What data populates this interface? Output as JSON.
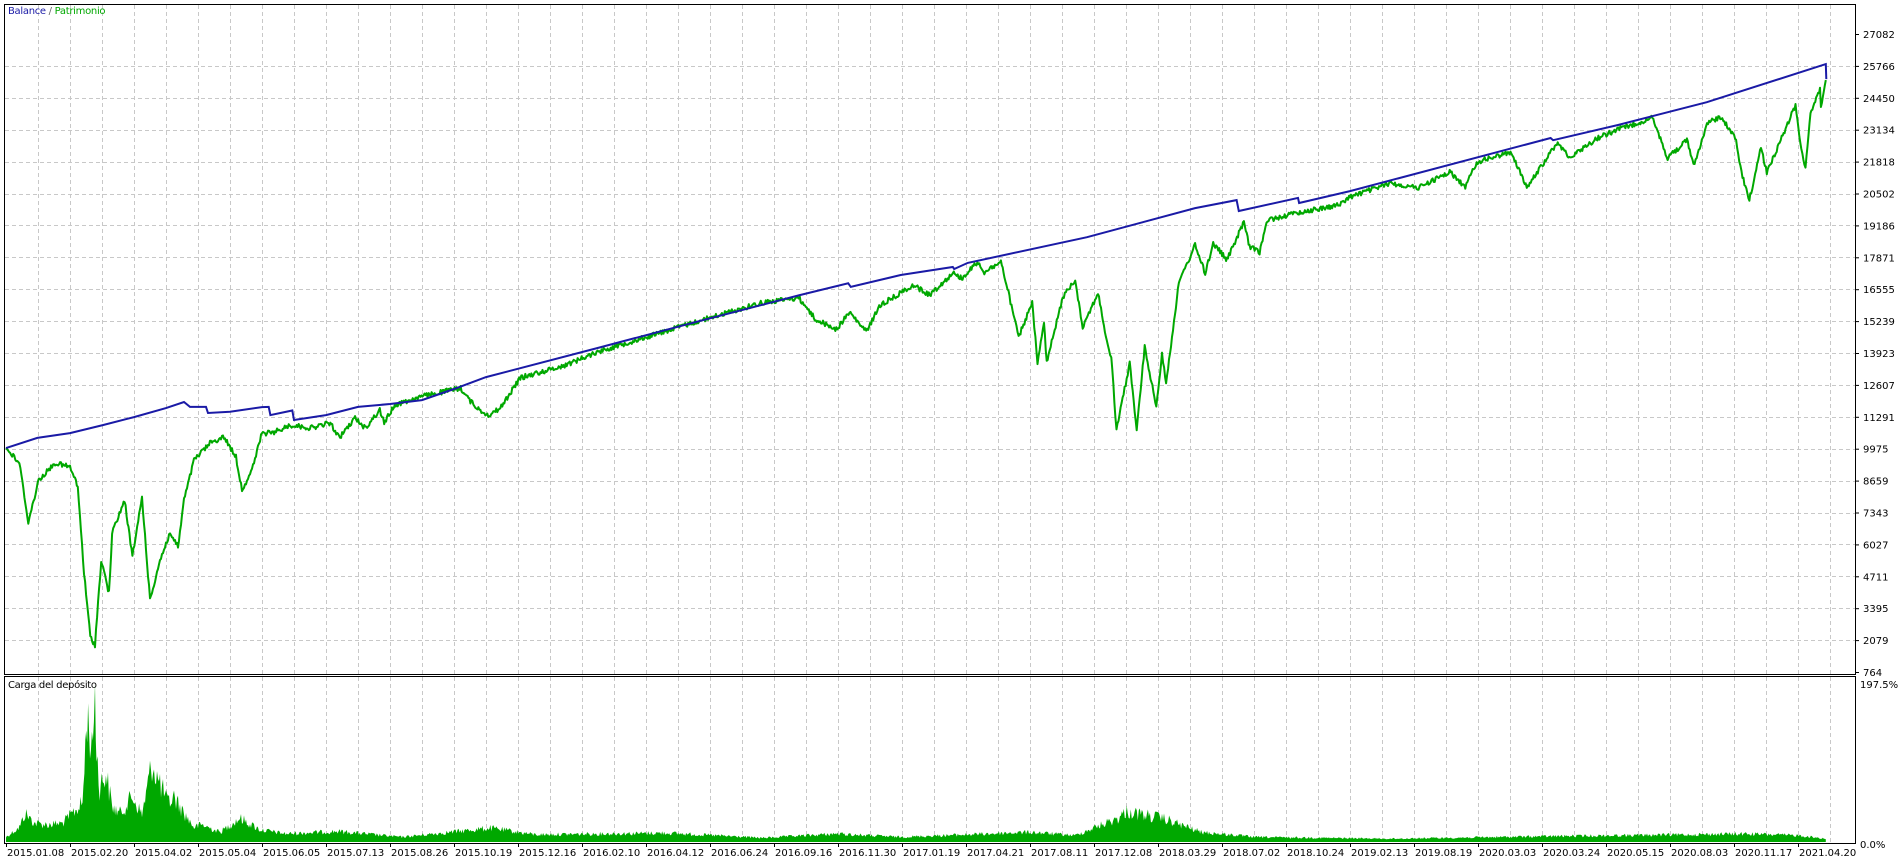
{
  "legend": {
    "balance": "Balance",
    "separator": " / ",
    "equity": "Patrimonio"
  },
  "lower_pane": {
    "label": "Carga del depósito"
  },
  "colors": {
    "balance": "#1a1aa6",
    "equity": "#00a800",
    "grid": "#c8c8c8",
    "frame": "#000000"
  },
  "chart_data": [
    {
      "type": "line",
      "grid": true,
      "ylim": [
        764,
        27082
      ],
      "y_ticks": [
        "27082",
        "25766",
        "24450",
        "23134",
        "21818",
        "20502",
        "19186",
        "17871",
        "16555",
        "15239",
        "13923",
        "12607",
        "11291",
        "9975",
        "8659",
        "7343",
        "6027",
        "4711",
        "3395",
        "2079",
        "764"
      ],
      "x_ticks": [
        "2015.01.08",
        "2015.02.20",
        "2015.04.02",
        "2015.05.04",
        "2015.06.05",
        "2015.07.13",
        "2015.08.26",
        "2015.10.19",
        "2015.12.16",
        "2016.02.10",
        "2016.04.12",
        "2016.06.24",
        "2016.09.16",
        "2016.11.30",
        "2017.01.19",
        "2017.04.21",
        "2017.08.11",
        "2017.12.08",
        "2018.03.29",
        "2018.07.02",
        "2018.10.24",
        "2019.02.13",
        "2019.08.19",
        "2020.03.03",
        "2020.03.24",
        "2020.05.15",
        "2020.08.03",
        "2020.11.17",
        "2021.04.20"
      ],
      "series": [
        {
          "name": "Balance",
          "color": "#1a1aa6",
          "points": [
            [
              "2015.01.08",
              10000
            ],
            [
              "2015.01.29",
              10420
            ],
            [
              "2015.02.20",
              10620
            ],
            [
              "2015.03.13",
              10950
            ],
            [
              "2015.04.02",
              11280
            ],
            [
              "2015.04.18",
              11650
            ],
            [
              "2015.04.27",
              11900
            ],
            [
              "2015.04.30",
              11700
            ],
            [
              "2015.05.08",
              11700
            ],
            [
              "2015.05.09",
              11450
            ],
            [
              "2015.05.20",
              11500
            ],
            [
              "2015.06.05",
              11690
            ],
            [
              "2015.06.09",
              11700
            ],
            [
              "2015.06.10",
              11360
            ],
            [
              "2015.06.23",
              11550
            ],
            [
              "2015.06.24",
              11160
            ],
            [
              "2015.07.13",
              11360
            ],
            [
              "2015.08.04",
              11700
            ],
            [
              "2015.08.26",
              11820
            ],
            [
              "2015.09.22",
              11980
            ],
            [
              "2015.10.19",
              12440
            ],
            [
              "2015.11.17",
              12930
            ],
            [
              "2016.02.27",
              14150
            ],
            [
              "2016.06.13",
              15250
            ],
            [
              "2016.10.15",
              16300
            ],
            [
              "2016.12.08",
              16800
            ],
            [
              "2016.12.10",
              16650
            ],
            [
              "2017.01.18",
              17140
            ],
            [
              "2017.04.02",
              17470
            ],
            [
              "2017.04.04",
              17390
            ],
            [
              "2017.04.24",
              17640
            ],
            [
              "2017.11.25",
              18700
            ],
            [
              "2018.05.23",
              19900
            ],
            [
              "2018.07.28",
              20230
            ],
            [
              "2018.08.01",
              19780
            ],
            [
              "2018.11.14",
              20320
            ],
            [
              "2018.11.16",
              20110
            ],
            [
              "2019.02.13",
              20600
            ],
            [
              "2020.03.31",
              22790
            ],
            [
              "2020.04.02",
              22700
            ],
            [
              "2020.05.30",
              23330
            ],
            [
              "2020.10.03",
              24270
            ],
            [
              "2021.06.26",
              25840
            ],
            [
              "2021.06.27",
              25220
            ]
          ]
        },
        {
          "name": "Patrimonio",
          "color": "#00a800",
          "points": [
            [
              "2015.01.08",
              10000
            ],
            [
              "2015.01.17",
              9380
            ],
            [
              "2015.01.23",
              6950
            ],
            [
              "2015.01.30",
              8680
            ],
            [
              "2015.02.10",
              9380
            ],
            [
              "2015.02.20",
              9220
            ],
            [
              "2015.02.25",
              8400
            ],
            [
              "2015.03.01",
              4850
            ],
            [
              "2015.03.05",
              2210
            ],
            [
              "2015.03.08",
              1880
            ],
            [
              "2015.03.12",
              5380
            ],
            [
              "2015.03.17",
              4020
            ],
            [
              "2015.03.19",
              6490
            ],
            [
              "2015.03.27",
              7850
            ],
            [
              "2015.04.01",
              5510
            ],
            [
              "2015.04.06",
              7980
            ],
            [
              "2015.04.10",
              3730
            ],
            [
              "2015.04.15",
              5380
            ],
            [
              "2015.04.20",
              6490
            ],
            [
              "2015.04.24",
              5920
            ],
            [
              "2015.04.27",
              7850
            ],
            [
              "2015.05.02",
              9500
            ],
            [
              "2015.05.10",
              10210
            ],
            [
              "2015.05.17",
              10460
            ],
            [
              "2015.05.23",
              9630
            ],
            [
              "2015.05.26",
              8270
            ],
            [
              "2015.05.31",
              9100
            ],
            [
              "2015.06.05",
              10620
            ],
            [
              "2015.06.11",
              10620
            ],
            [
              "2015.06.22",
              10950
            ],
            [
              "2015.07.04",
              10830
            ],
            [
              "2015.07.16",
              11040
            ],
            [
              "2015.07.22",
              10420
            ],
            [
              "2015.08.02",
              11240
            ],
            [
              "2015.08.09",
              10830
            ],
            [
              "2015.08.19",
              11570
            ],
            [
              "2015.08.22",
              11040
            ],
            [
              "2015.08.30",
              11780
            ],
            [
              "2015.09.20",
              12110
            ],
            [
              "2015.10.25",
              12480
            ],
            [
              "2015.11.02",
              11980
            ],
            [
              "2015.11.11",
              11570
            ],
            [
              "2015.11.20",
              11360
            ],
            [
              "2015.11.30",
              11650
            ],
            [
              "2015.12.18",
              12900
            ],
            [
              "2016.01.25",
              13400
            ],
            [
              "2016.02.27",
              14000
            ],
            [
              "2016.04.06",
              14500
            ],
            [
              "2016.05.20",
              15000
            ],
            [
              "2016.07.07",
              15500
            ],
            [
              "2016.08.31",
              16000
            ],
            [
              "2016.10.15",
              16200
            ],
            [
              "2016.11.04",
              15300
            ],
            [
              "2016.11.28",
              14900
            ],
            [
              "2016.12.09",
              15600
            ],
            [
              "2016.12.22",
              14800
            ],
            [
              "2017.01.02",
              15900
            ],
            [
              "2017.01.18",
              16400
            ],
            [
              "2017.02.03",
              16730
            ],
            [
              "2017.02.28",
              16320
            ],
            [
              "2017.03.18",
              16810
            ],
            [
              "2017.04.02",
              17220
            ],
            [
              "2017.04.16",
              17010
            ],
            [
              "2017.05.11",
              17680
            ],
            [
              "2017.05.23",
              17260
            ],
            [
              "2017.06.21",
              17680
            ],
            [
              "2017.06.29",
              16940
            ],
            [
              "2017.07.22",
              14580
            ],
            [
              "2017.08.15",
              15980
            ],
            [
              "2017.08.25",
              13510
            ],
            [
              "2017.09.06",
              15160
            ],
            [
              "2017.09.11",
              13510
            ],
            [
              "2017.10.11",
              16230
            ],
            [
              "2017.11.03",
              16940
            ],
            [
              "2017.11.17",
              15000
            ],
            [
              "2017.12.15",
              16400
            ],
            [
              "2018.01.01",
              14170
            ],
            [
              "2018.01.07",
              13760
            ],
            [
              "2018.01.16",
              10740
            ],
            [
              "2018.02.08",
              13510
            ],
            [
              "2018.02.20",
              10740
            ],
            [
              "2018.03.06",
              14170
            ],
            [
              "2018.03.26",
              11690
            ],
            [
              "2018.04.04",
              13920
            ],
            [
              "2018.04.10",
              12680
            ],
            [
              "2018.04.29",
              16810
            ],
            [
              "2018.05.23",
              18380
            ],
            [
              "2018.06.07",
              17220
            ],
            [
              "2018.06.19",
              18450
            ],
            [
              "2018.07.11",
              17760
            ],
            [
              "2018.08.10",
              19330
            ],
            [
              "2018.08.20",
              18300
            ],
            [
              "2018.09.07",
              18090
            ],
            [
              "2018.09.21",
              19410
            ],
            [
              "2018.11.12",
              19700
            ],
            [
              "2019.01.25",
              20030
            ],
            [
              "2019.02.13",
              20360
            ],
            [
              "2019.06.10",
              20930
            ],
            [
              "2019.08.30",
              20730
            ],
            [
              "2019.12.07",
              21390
            ],
            [
              "2020.01.24",
              20770
            ],
            [
              "2020.02.28",
              21800
            ],
            [
              "2020.03.14",
              22210
            ],
            [
              "2020.03.19",
              20730
            ],
            [
              "2020.04.05",
              22580
            ],
            [
              "2020.04.16",
              22000
            ],
            [
              "2020.05.08",
              22790
            ],
            [
              "2020.05.28",
              23120
            ],
            [
              "2020.07.12",
              23620
            ],
            [
              "2020.07.31",
              21970
            ],
            [
              "2020.08.31",
              22700
            ],
            [
              "2020.09.11",
              21680
            ],
            [
              "2020.10.05",
              23450
            ],
            [
              "2020.10.27",
              23660
            ],
            [
              "2020.11.22",
              22700
            ],
            [
              "2020.12.05",
              21350
            ],
            [
              "2020.12.24",
              20230
            ],
            [
              "2021.01.21",
              22420
            ],
            [
              "2021.02.04",
              21350
            ],
            [
              "2021.04.14",
              24150
            ],
            [
              "2021.04.28",
              22300
            ],
            [
              "2021.05.08",
              21590
            ],
            [
              "2021.05.20",
              23860
            ],
            [
              "2021.06.12",
              24770
            ],
            [
              "2021.06.14",
              24030
            ],
            [
              "2021.06.26",
              25180
            ]
          ]
        }
      ]
    },
    {
      "type": "area",
      "title": "Carga del depósito",
      "ylim": [
        0,
        197.5
      ],
      "y_ticks": [
        "197.5%",
        "0.0%"
      ],
      "color": "#00a800",
      "points": [
        [
          "2015.01.08",
          6
        ],
        [
          "2015.01.17",
          18
        ],
        [
          "2015.01.21",
          35
        ],
        [
          "2015.01.27",
          23
        ],
        [
          "2015.02.05",
          21
        ],
        [
          "2015.02.15",
          23
        ],
        [
          "2015.02.28",
          47
        ],
        [
          "2015.03.03",
          157
        ],
        [
          "2015.03.06",
          108
        ],
        [
          "2015.03.08",
          183
        ],
        [
          "2015.03.09",
          108
        ],
        [
          "2015.03.11",
          67
        ],
        [
          "2015.03.15",
          84
        ],
        [
          "2015.03.19",
          43
        ],
        [
          "2015.03.24",
          35
        ],
        [
          "2015.04.01",
          55
        ],
        [
          "2015.04.06",
          33
        ],
        [
          "2015.04.11",
          96
        ],
        [
          "2015.04.14",
          76
        ],
        [
          "2015.04.19",
          47
        ],
        [
          "2015.04.22",
          55
        ],
        [
          "2015.04.27",
          35
        ],
        [
          "2015.05.02",
          18
        ],
        [
          "2015.05.06",
          21
        ],
        [
          "2015.05.15",
          12
        ],
        [
          "2015.05.25",
          29
        ],
        [
          "2015.06.04",
          15
        ],
        [
          "2015.06.19",
          10
        ],
        [
          "2015.07.21",
          13
        ],
        [
          "2015.09.05",
          6
        ],
        [
          "2015.11.21",
          17
        ],
        [
          "2015.12.31",
          9
        ],
        [
          "2016.05.05",
          11
        ],
        [
          "2016.09.01",
          5
        ],
        [
          "2016.11.28",
          10
        ],
        [
          "2017.01.18",
          6
        ],
        [
          "2017.08.11",
          12
        ],
        [
          "2017.11.03",
          8
        ],
        [
          "2018.01.22",
          30
        ],
        [
          "2018.02.01",
          37
        ],
        [
          "2018.04.04",
          29
        ],
        [
          "2018.06.01",
          12
        ],
        [
          "2018.08.31",
          6
        ],
        [
          "2019.06.10",
          4
        ],
        [
          "2020.03.31",
          7
        ],
        [
          "2020.08.28",
          9
        ],
        [
          "2020.12.12",
          10
        ],
        [
          "2021.04.22",
          8
        ],
        [
          "2021.06.26",
          4
        ]
      ]
    }
  ]
}
